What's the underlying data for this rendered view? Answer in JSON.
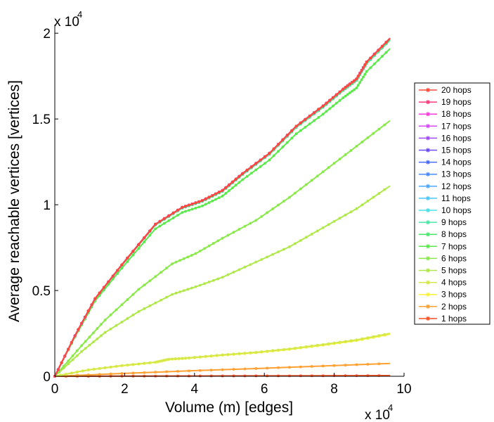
{
  "chart_data": {
    "type": "line",
    "title": "",
    "xlabel": "Volume (m) [edges]",
    "ylabel": "Average reachable vertices [vertices]",
    "xlim": [
      0,
      100000
    ],
    "ylim": [
      0,
      20500
    ],
    "x_multiplier_label": "x 10",
    "x_multiplier_exp": "4",
    "y_multiplier_label": "x 10",
    "y_multiplier_exp": "4",
    "x_ticks": [
      0,
      20000,
      40000,
      60000,
      80000,
      100000
    ],
    "x_tick_labels": [
      "0",
      "2",
      "4",
      "6",
      "8",
      "10"
    ],
    "y_ticks": [
      0,
      5000,
      10000,
      15000,
      20000
    ],
    "y_tick_labels": [
      "0",
      "0.5",
      "1",
      "1.5",
      "2"
    ],
    "legend_position": "right-outside",
    "series": [
      {
        "name": "20 hops",
        "color": "#ff4a3a",
        "x": [
          0,
          96000
        ],
        "y": [
          0,
          19700
        ]
      },
      {
        "name": "19 hops",
        "color": "#ff3a7a",
        "x": [
          0,
          96000
        ],
        "y": [
          0,
          19700
        ]
      },
      {
        "name": "18 hops",
        "color": "#ff3adc",
        "x": [
          0,
          96000
        ],
        "y": [
          0,
          19700
        ]
      },
      {
        "name": "17 hops",
        "color": "#d84aff",
        "x": [
          0,
          96000
        ],
        "y": [
          0,
          19700
        ]
      },
      {
        "name": "16 hops",
        "color": "#a04aff",
        "x": [
          0,
          96000
        ],
        "y": [
          0,
          19700
        ]
      },
      {
        "name": "15 hops",
        "color": "#6a4aff",
        "x": [
          0,
          96000
        ],
        "y": [
          0,
          19700
        ]
      },
      {
        "name": "14 hops",
        "color": "#4a6aff",
        "x": [
          0,
          96000
        ],
        "y": [
          0,
          19700
        ]
      },
      {
        "name": "13 hops",
        "color": "#4a8aff",
        "x": [
          0,
          96000
        ],
        "y": [
          0,
          19700
        ]
      },
      {
        "name": "12 hops",
        "color": "#4aa8ff",
        "x": [
          0,
          96000
        ],
        "y": [
          0,
          19700
        ]
      },
      {
        "name": "11 hops",
        "color": "#4ac8ff",
        "x": [
          0,
          96000
        ],
        "y": [
          0,
          19700
        ]
      },
      {
        "name": "10 hops",
        "color": "#4ae0e8",
        "x": [
          0,
          96000
        ],
        "y": [
          0,
          19700
        ]
      },
      {
        "name": "9 hops",
        "color": "#4ae8a8",
        "x": [
          0,
          96000
        ],
        "y": [
          0,
          19650
        ]
      },
      {
        "name": "8 hops",
        "color": "#4ae86a",
        "x": [
          0,
          96000
        ],
        "y": [
          0,
          19600
        ]
      },
      {
        "name": "7 hops",
        "color": "#5ae84a",
        "x": [
          0,
          96000
        ],
        "y": [
          0,
          19100
        ]
      },
      {
        "name": "6 hops",
        "color": "#8ae84a",
        "x": [
          0,
          96000
        ],
        "y": [
          0,
          14900
        ]
      },
      {
        "name": "5 hops",
        "color": "#b0e84a",
        "x": [
          0,
          96000
        ],
        "y": [
          0,
          11100
        ]
      },
      {
        "name": "4 hops",
        "color": "#d4e84a",
        "x": [
          0,
          96000
        ],
        "y": [
          0,
          2500
        ]
      },
      {
        "name": "3 hops",
        "color": "#f8f23a",
        "x": [
          0,
          96000
        ],
        "y": [
          0,
          2450
        ]
      },
      {
        "name": "2 hops",
        "color": "#ffa030",
        "x": [
          0,
          96000
        ],
        "y": [
          0,
          750
        ]
      },
      {
        "name": "1 hops",
        "color": "#ff5020",
        "x": [
          0,
          96000
        ],
        "y": [
          0,
          40
        ]
      }
    ]
  }
}
